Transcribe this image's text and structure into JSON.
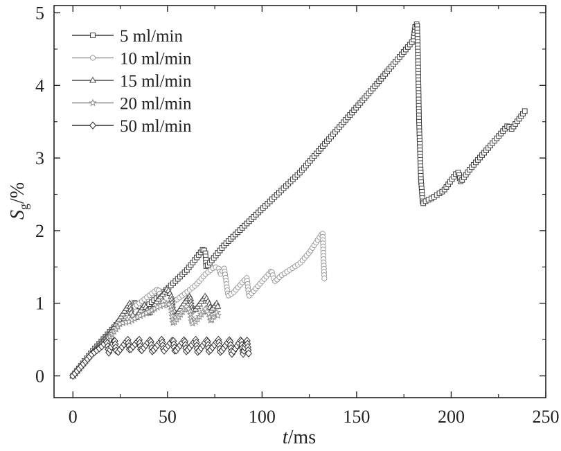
{
  "chart_data": {
    "type": "line",
    "title": "",
    "xlabel": {
      "italic": "t",
      "rest": "/ms"
    },
    "ylabel": {
      "italic": "S",
      "sub": "g",
      "rest": "/%"
    },
    "xlim": [
      -10,
      250
    ],
    "ylim": [
      -0.3,
      5.1
    ],
    "xticks": [
      0,
      50,
      100,
      150,
      200,
      250
    ],
    "yticks": [
      0,
      1,
      2,
      3,
      4,
      5
    ],
    "grid": false,
    "legend_position": "top-left",
    "series": [
      {
        "name": "5 ml/min",
        "marker": "square",
        "color": "#3a3a3a",
        "x": [
          0,
          10,
          20,
          30,
          33,
          34,
          40,
          50,
          60,
          69,
          70,
          70.5,
          80,
          100,
          120,
          140,
          160,
          180,
          181,
          182,
          182.5,
          183,
          184,
          185,
          186,
          190,
          196,
          203,
          204,
          205,
          210,
          220,
          230,
          231,
          232,
          239
        ],
        "y": [
          0,
          0.33,
          0.62,
          0.9,
          1.02,
          0.95,
          0.98,
          1.2,
          1.45,
          1.75,
          1.7,
          1.5,
          1.8,
          2.3,
          2.8,
          3.4,
          4.0,
          4.62,
          4.82,
          4.85,
          4.3,
          3.5,
          2.7,
          2.37,
          2.4,
          2.45,
          2.55,
          2.8,
          2.8,
          2.67,
          2.85,
          3.15,
          3.45,
          3.42,
          3.4,
          3.65
        ]
      },
      {
        "name": "10 ml/min",
        "marker": "circle",
        "color": "#9a9a9a",
        "x": [
          0,
          10,
          20,
          30,
          45,
          47,
          49,
          55,
          65,
          70,
          75,
          77,
          78,
          80,
          81,
          82,
          85,
          90,
          92,
          93,
          95,
          100,
          105,
          106,
          107,
          110,
          120,
          125,
          132,
          132.5,
          133
        ],
        "y": [
          0,
          0.33,
          0.6,
          0.9,
          1.2,
          1.05,
          0.98,
          1.05,
          1.25,
          1.4,
          1.5,
          1.48,
          1.4,
          1.48,
          1.3,
          1.1,
          1.15,
          1.3,
          1.35,
          1.1,
          1.15,
          1.3,
          1.45,
          1.35,
          1.3,
          1.38,
          1.55,
          1.7,
          1.97,
          1.6,
          1.3
        ]
      },
      {
        "name": "15 ml/min",
        "marker": "triangle",
        "color": "#4a4a4a",
        "x": [
          0,
          10,
          20,
          28,
          30,
          31,
          33,
          38,
          39,
          40,
          45,
          50,
          52,
          53,
          55,
          60,
          62,
          63,
          65,
          70,
          72,
          73,
          76,
          77
        ],
        "y": [
          0,
          0.32,
          0.6,
          0.92,
          1.0,
          0.85,
          0.8,
          0.98,
          0.92,
          0.85,
          1.05,
          1.2,
          1.1,
          0.9,
          0.85,
          1.05,
          1.1,
          0.9,
          0.92,
          1.1,
          1.0,
          0.9,
          1.0,
          0.92
        ]
      },
      {
        "name": "20 ml/min",
        "marker": "star",
        "color": "#8a8a8a",
        "x": [
          0,
          10,
          20,
          25,
          30,
          35,
          40,
          45,
          50,
          52,
          53,
          55,
          60,
          62,
          63,
          65,
          70,
          72,
          73,
          75,
          76,
          77
        ],
        "y": [
          0,
          0.3,
          0.55,
          0.72,
          0.75,
          0.82,
          0.88,
          0.95,
          1.0,
          0.95,
          0.72,
          0.78,
          0.95,
          0.9,
          0.72,
          0.75,
          0.92,
          0.85,
          0.75,
          0.85,
          0.88,
          0.8
        ]
      },
      {
        "name": "50 ml/min",
        "marker": "diamond",
        "color": "#2f2f2f",
        "x": [
          0,
          5,
          10,
          15,
          18,
          19,
          22,
          23,
          24,
          29,
          30,
          35,
          36,
          41,
          42,
          47,
          48,
          53,
          54,
          59,
          60,
          65,
          66,
          71,
          72,
          77,
          78,
          83,
          84,
          89,
          90,
          92,
          93
        ],
        "y": [
          0,
          0.15,
          0.3,
          0.4,
          0.48,
          0.32,
          0.5,
          0.33,
          0.33,
          0.5,
          0.35,
          0.5,
          0.34,
          0.5,
          0.33,
          0.5,
          0.34,
          0.5,
          0.33,
          0.5,
          0.33,
          0.5,
          0.32,
          0.5,
          0.33,
          0.5,
          0.32,
          0.5,
          0.3,
          0.5,
          0.3,
          0.5,
          0.28
        ]
      }
    ]
  }
}
